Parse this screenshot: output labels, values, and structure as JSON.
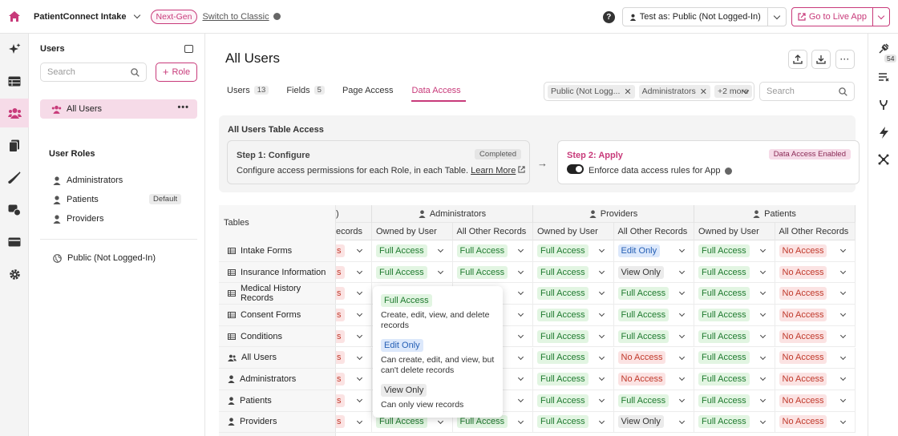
{
  "topbar": {
    "app_name": "PatientConnect Intake",
    "next_gen": "Next-Gen",
    "switch_classic": "Switch to Classic",
    "help": "?",
    "test_as": "Test as: Public (Not Logged-In)",
    "go_live": "Go to Live App"
  },
  "sidebar": {
    "title": "Users",
    "search_placeholder": "Search",
    "role_button": "Role",
    "all_users": "All Users",
    "more": "•••",
    "user_roles_label": "User Roles",
    "roles": [
      "Administrators",
      "Patients",
      "Providers"
    ],
    "default_badge": "Default",
    "public": "Public (Not Logged-In)"
  },
  "main": {
    "title": "All Users",
    "tabs": [
      {
        "label": "Users",
        "count": "13"
      },
      {
        "label": "Fields",
        "count": "5"
      },
      {
        "label": "Page Access",
        "count": ""
      },
      {
        "label": "Data Access",
        "count": ""
      }
    ],
    "filter_chips": [
      "Public (Not Logg...",
      "Administrators"
    ],
    "filter_more": "+2 more",
    "search_placeholder": "Search"
  },
  "access_panel": {
    "title": "All Users Table Access",
    "step1_title": "Step 1: Configure",
    "step1_badge": "Completed",
    "step1_desc": "Configure access permissions for each Role, in each Table.",
    "step1_link": "Learn More",
    "step2_title": "Step 2: Apply",
    "step2_badge": "Data Access Enabled",
    "step2_desc": "Enforce data access rules for App"
  },
  "table": {
    "tables_header": "Tables",
    "partial_group": ")",
    "partial_sub": "ecords",
    "partial_cell": "s",
    "groups": [
      "Administrators",
      "Providers",
      "Patients"
    ],
    "subheaders": [
      "Owned by User",
      "All Other Records"
    ],
    "rows": [
      {
        "name": "Intake Forms",
        "icon": "table-icon",
        "values": [
          "Full Access",
          "Full Access",
          "Full Access",
          "Edit Only",
          "Full Access",
          "No Access"
        ]
      },
      {
        "name": "Insurance Information",
        "icon": "table-icon",
        "values": [
          "Full Access",
          "Full Access",
          "Full Access",
          "View Only",
          "Full Access",
          "No Access"
        ]
      },
      {
        "name": "Medical History Records",
        "icon": "table-icon",
        "values": [
          "",
          "",
          "Full Access",
          "Full Access",
          "Full Access",
          "No Access"
        ]
      },
      {
        "name": "Consent Forms",
        "icon": "table-icon",
        "values": [
          "",
          "",
          "Full Access",
          "Full Access",
          "Full Access",
          "No Access"
        ]
      },
      {
        "name": "Conditions",
        "icon": "table-icon",
        "values": [
          "",
          "",
          "Full Access",
          "Full Access",
          "Full Access",
          "No Access"
        ]
      },
      {
        "name": "All Users",
        "icon": "users-icon",
        "values": [
          "",
          "",
          "Full Access",
          "No Access",
          "Full Access",
          "No Access"
        ]
      },
      {
        "name": "Administrators",
        "icon": "user-icon",
        "values": [
          "",
          "",
          "Full Access",
          "No Access",
          "Full Access",
          "No Access"
        ]
      },
      {
        "name": "Patients",
        "icon": "user-icon",
        "values": [
          "",
          "",
          "Full Access",
          "Full Access",
          "Full Access",
          "No Access"
        ]
      },
      {
        "name": "Providers",
        "icon": "user-icon",
        "values": [
          "Full Access",
          "Full Access",
          "Full Access",
          "View Only",
          "Full Access",
          "No Access"
        ]
      }
    ]
  },
  "popover": {
    "items": [
      {
        "label": "Full Access",
        "desc": "Create, edit, view, and delete records"
      },
      {
        "label": "Edit Only",
        "desc": "Can create, edit, and view, but can't delete records"
      },
      {
        "label": "View Only",
        "desc": "Can only view records"
      }
    ]
  },
  "rightrail": {
    "count": "54"
  },
  "colors": {
    "accent": "#c83a7a",
    "full": "#1f7a2f",
    "no": "#c0392b",
    "edit": "#2660b5"
  }
}
